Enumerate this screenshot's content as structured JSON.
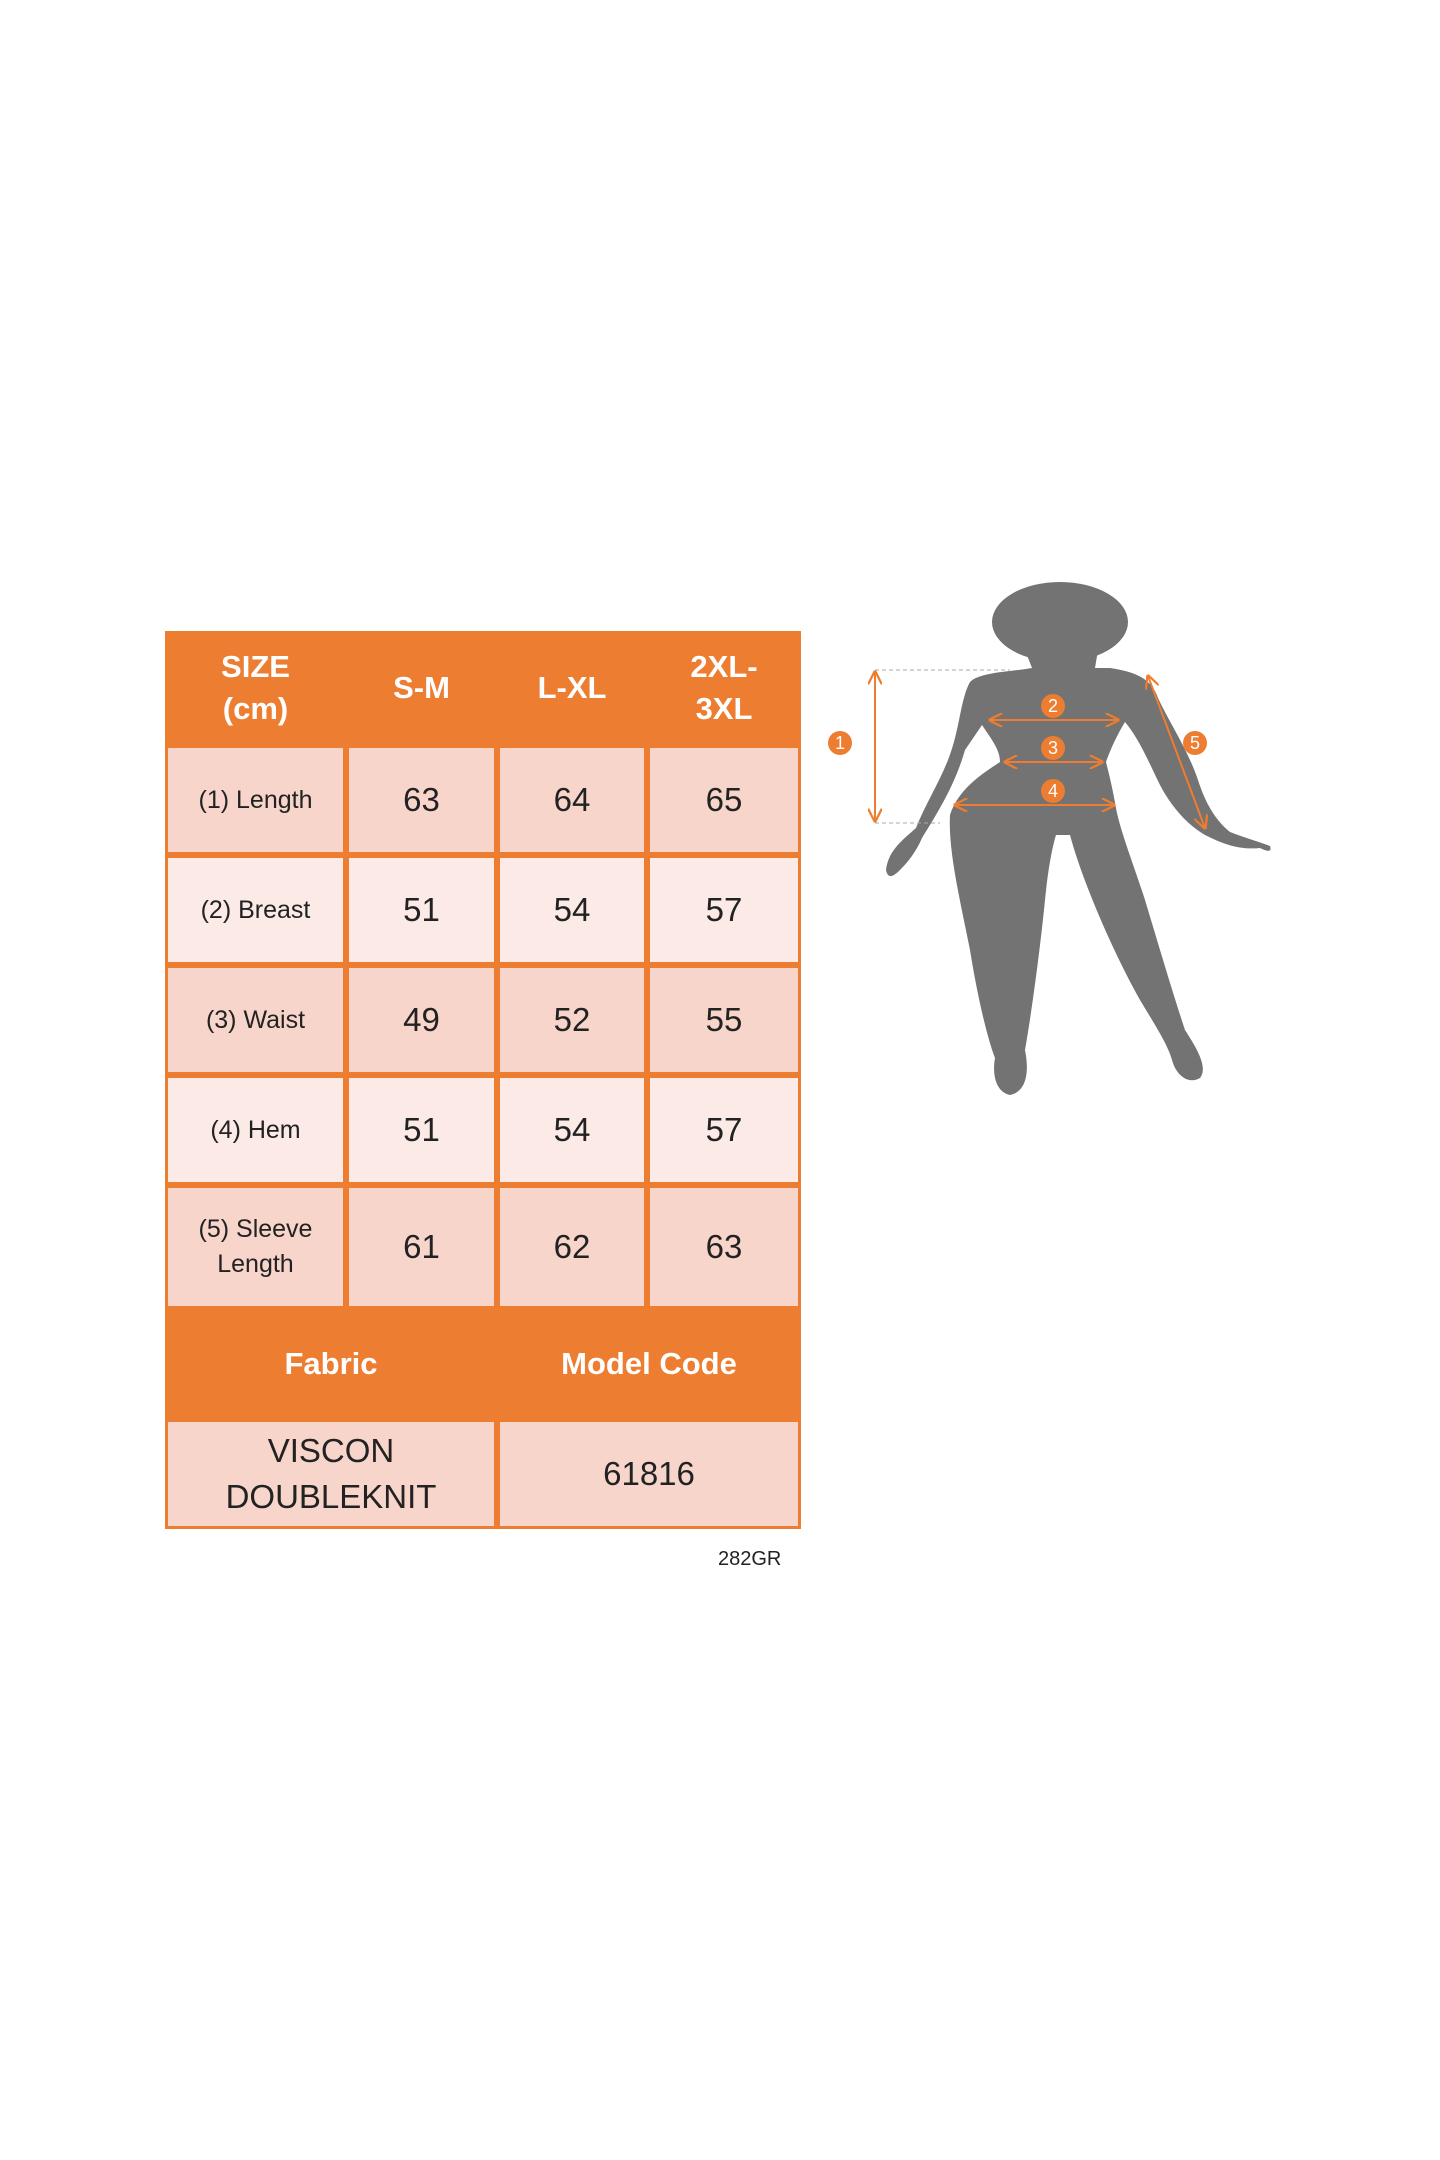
{
  "table": {
    "header": [
      "SIZE\n(cm)",
      "S-M",
      "L-XL",
      "2XL-\n3XL"
    ],
    "rows": [
      {
        "label": "(1) Length",
        "values": [
          "63",
          "64",
          "65"
        ]
      },
      {
        "label": "(2) Breast",
        "values": [
          "51",
          "54",
          "57"
        ]
      },
      {
        "label": "(3) Waist",
        "values": [
          "49",
          "52",
          "55"
        ]
      },
      {
        "label": "(4) Hem",
        "values": [
          "51",
          "54",
          "57"
        ]
      },
      {
        "label": "(5) Sleeve\nLength",
        "values": [
          "61",
          "62",
          "63"
        ]
      }
    ],
    "info_header": {
      "fabric": "Fabric",
      "model_code": "Model Code"
    },
    "info_values": {
      "fabric": "VISCON\nDOUBLEKNIT",
      "model_code": "61816"
    }
  },
  "reference_code": "282GR",
  "figure": {
    "markers": [
      "1",
      "2",
      "3",
      "4",
      "5"
    ],
    "silhouette_color": "#737373",
    "accent_color": "#ED7D31"
  },
  "colors": {
    "header": "#ED7D31",
    "cell_dark": "#F8D5CB",
    "cell_light": "#FBEAE5"
  }
}
